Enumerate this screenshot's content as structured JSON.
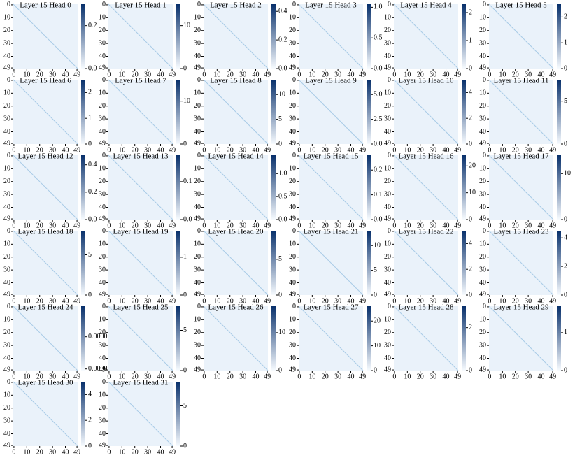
{
  "chart_data": [
    {
      "type": "heatmap",
      "title": "Layer 15 Head 0",
      "clim": [
        0,
        0.3
      ],
      "cticks": [
        {
          "value": 0,
          "label": "0.0"
        },
        0.2
      ]
    },
    {
      "type": "heatmap",
      "title": "Layer 15 Head 1",
      "clim": [
        0,
        15
      ],
      "cticks": [
        0,
        10
      ]
    },
    {
      "type": "heatmap",
      "title": "Layer 15 Head 2",
      "clim": [
        0,
        0.45
      ],
      "cticks": [
        {
          "value": 0,
          "label": "0.0"
        },
        0.2,
        0.4
      ]
    },
    {
      "type": "heatmap",
      "title": "Layer 15 Head 3",
      "clim": [
        0,
        1.05
      ],
      "cticks": [
        {
          "value": 0,
          "label": "0.0"
        },
        0.5,
        {
          "value": 1,
          "label": "1.0"
        }
      ]
    },
    {
      "type": "heatmap",
      "title": "Layer 15 Head 4",
      "clim": [
        0,
        2.3
      ],
      "cticks": [
        0,
        1,
        2
      ]
    },
    {
      "type": "heatmap",
      "title": "Layer 15 Head 5",
      "clim": [
        0,
        2.5
      ],
      "cticks": [
        0,
        1,
        2
      ]
    },
    {
      "type": "heatmap",
      "title": "Layer 15 Head 6",
      "clim": [
        0,
        2.5
      ],
      "cticks": [
        0,
        1,
        2
      ]
    },
    {
      "type": "heatmap",
      "title": "Layer 15 Head 7",
      "clim": [
        0,
        15
      ],
      "cticks": [
        0,
        10
      ]
    },
    {
      "type": "heatmap",
      "title": "Layer 15 Head 8",
      "clim": [
        0,
        13
      ],
      "cticks": [
        0,
        5,
        10
      ]
    },
    {
      "type": "heatmap",
      "title": "Layer 15 Head 9",
      "clim": [
        0,
        6.5
      ],
      "cticks": [
        {
          "value": 0,
          "label": "0.0"
        },
        2.5,
        {
          "value": 5,
          "label": "5.0"
        }
      ]
    },
    {
      "type": "heatmap",
      "title": "Layer 15 Head 10",
      "clim": [
        0,
        5
      ],
      "cticks": [
        0,
        2,
        4
      ]
    },
    {
      "type": "heatmap",
      "title": "Layer 15 Head 11",
      "clim": [
        0,
        7.5
      ],
      "cticks": [
        0,
        5
      ]
    },
    {
      "type": "heatmap",
      "title": "Layer 15 Head 12",
      "clim": [
        0,
        0.47
      ],
      "cticks": [
        {
          "value": 0,
          "label": "0.0"
        },
        0.2,
        0.4
      ]
    },
    {
      "type": "heatmap",
      "title": "Layer 15 Head 13",
      "clim": [
        0,
        0.17
      ],
      "cticks": [
        {
          "value": 0,
          "label": "0.0"
        },
        0.1
      ]
    },
    {
      "type": "heatmap",
      "title": "Layer 15 Head 14",
      "clim": [
        0,
        1.4
      ],
      "cticks": [
        {
          "value": 0,
          "label": "0.0"
        },
        0.5,
        {
          "value": 1,
          "label": "1.0"
        }
      ]
    },
    {
      "type": "heatmap",
      "title": "Layer 15 Head 15",
      "clim": [
        0,
        0.26
      ],
      "cticks": [
        {
          "value": 0,
          "label": "0.0"
        },
        0.1,
        0.2
      ]
    },
    {
      "type": "heatmap",
      "title": "Layer 15 Head 16",
      "clim": [
        0,
        24
      ],
      "cticks": [
        0,
        10,
        20
      ]
    },
    {
      "type": "heatmap",
      "title": "Layer 15 Head 17",
      "clim": [
        0,
        14
      ],
      "cticks": [
        0,
        10
      ]
    },
    {
      "type": "heatmap",
      "title": "Layer 15 Head 18",
      "clim": [
        0,
        8
      ],
      "cticks": [
        0,
        5
      ]
    },
    {
      "type": "heatmap",
      "title": "Layer 15 Head 19",
      "clim": [
        0,
        1.7
      ],
      "cticks": [
        0,
        1
      ]
    },
    {
      "type": "heatmap",
      "title": "Layer 15 Head 20",
      "clim": [
        0,
        9
      ],
      "cticks": [
        0,
        5
      ]
    },
    {
      "type": "heatmap",
      "title": "Layer 15 Head 21",
      "clim": [
        0,
        13
      ],
      "cticks": [
        0,
        5,
        10
      ]
    },
    {
      "type": "heatmap",
      "title": "Layer 15 Head 22",
      "clim": [
        0,
        5
      ],
      "cticks": [
        0,
        2,
        4
      ]
    },
    {
      "type": "heatmap",
      "title": "Layer 15 Head 23",
      "clim": [
        0,
        4.5
      ],
      "cticks": [
        0,
        2,
        4
      ]
    },
    {
      "type": "heatmap",
      "title": "Layer 15 Head 24",
      "clim": [
        1.9e-05,
        5.9e-05
      ],
      "cticks": [
        {
          "value": 2e-05,
          "label": "0.0000"
        },
        {
          "value": 4e-05,
          "label": "0.0000"
        }
      ]
    },
    {
      "type": "heatmap",
      "title": "Layer 15 Head 25",
      "clim": [
        0,
        8
      ],
      "cticks": [
        0,
        5
      ]
    },
    {
      "type": "heatmap",
      "title": "Layer 15 Head 26",
      "clim": [
        0,
        17
      ],
      "cticks": [
        0,
        10
      ]
    },
    {
      "type": "heatmap",
      "title": "Layer 15 Head 27",
      "clim": [
        0,
        26
      ],
      "cticks": [
        0,
        10,
        20
      ]
    },
    {
      "type": "heatmap",
      "title": "Layer 15 Head 28",
      "clim": [
        0,
        3
      ],
      "cticks": [
        0,
        2
      ]
    },
    {
      "type": "heatmap",
      "title": "Layer 15 Head 29",
      "clim": [
        0,
        1.7
      ],
      "cticks": [
        0,
        1
      ]
    },
    {
      "type": "heatmap",
      "title": "Layer 15 Head 30",
      "clim": [
        0,
        5
      ],
      "cticks": [
        0,
        2,
        4
      ]
    },
    {
      "type": "heatmap",
      "title": "Layer 15 Head 31",
      "clim": [
        0,
        8
      ],
      "cticks": [
        0,
        5
      ]
    }
  ],
  "xlim": [
    -0.5,
    49.5
  ],
  "xticks": [
    0,
    10,
    20,
    30,
    40,
    49
  ],
  "ylim": [
    -0.5,
    49.5
  ],
  "yticks": [
    0,
    10,
    20,
    30,
    40,
    49
  ],
  "y_inverted": true,
  "colormap": [
    "#f7fbff",
    "#08306b"
  ]
}
